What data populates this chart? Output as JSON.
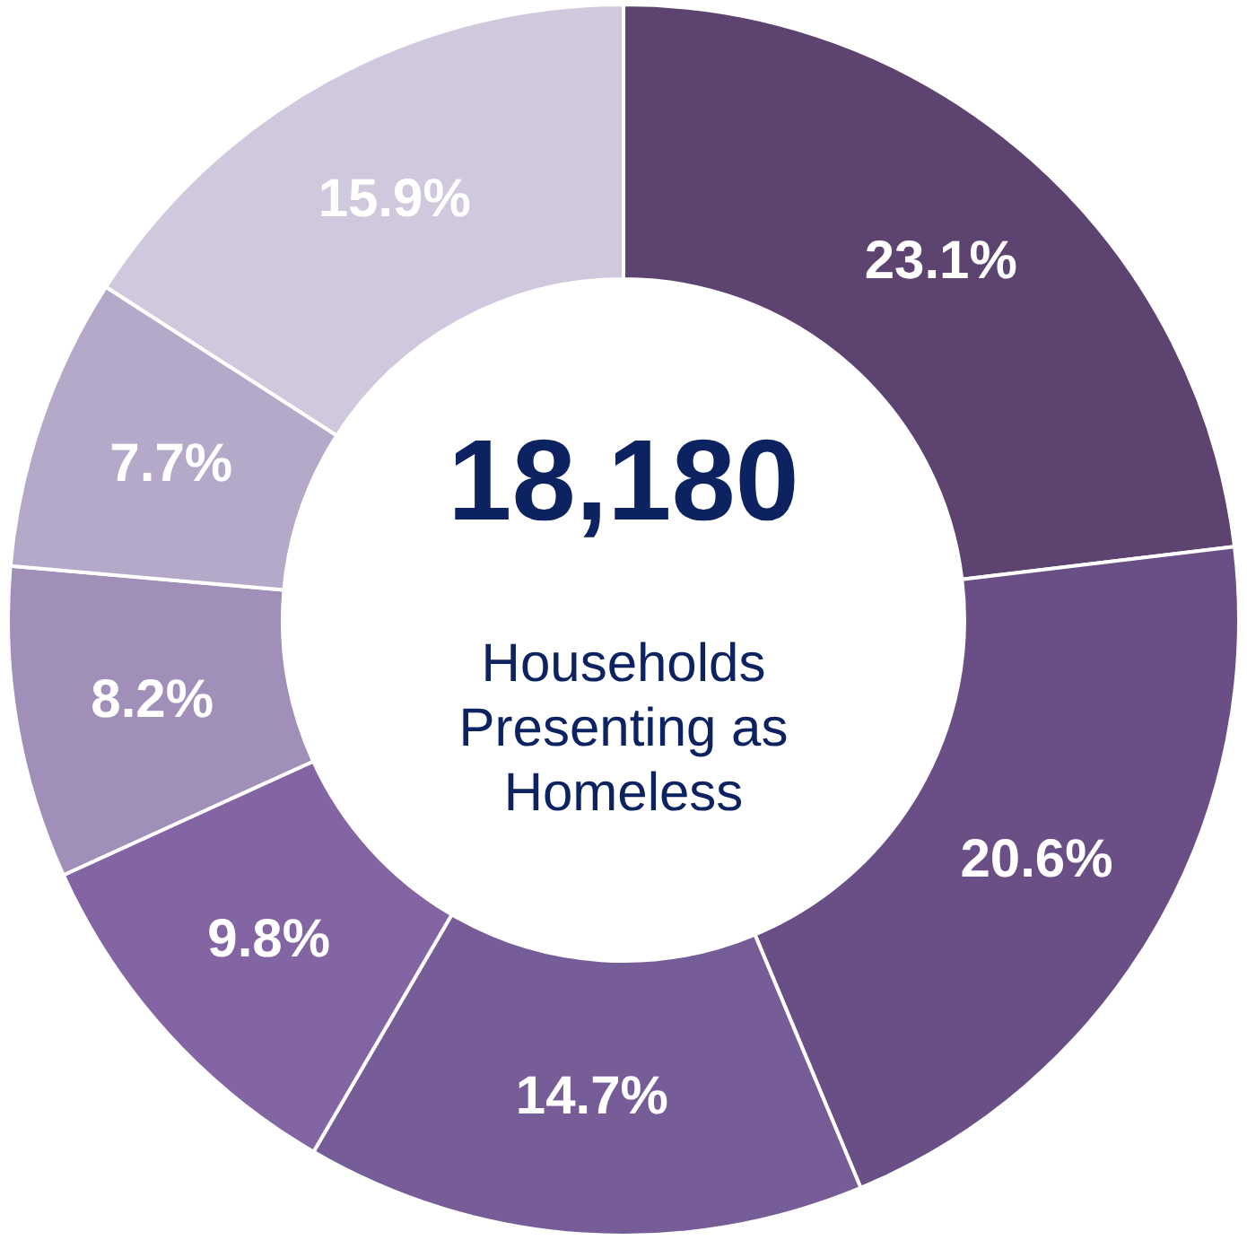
{
  "chart_data": {
    "type": "donut",
    "categories": [
      null,
      null,
      null,
      null,
      null,
      null,
      null
    ],
    "values": [
      23.1,
      20.6,
      14.7,
      9.8,
      8.2,
      7.7,
      15.9
    ],
    "colors": [
      "#5c4370",
      "#694f86",
      "#775d97",
      "#8465a3",
      "#a08fb8",
      "#b5a9c9",
      "#d0c8dc"
    ],
    "value_labels": [
      "23.1%",
      "20.6%",
      "14.7%",
      "9.8%",
      "8.2%",
      "7.7%",
      "15.9%"
    ],
    "annotations": [
      "18,180",
      "Households\nPresenting as\nHomeless"
    ]
  }
}
